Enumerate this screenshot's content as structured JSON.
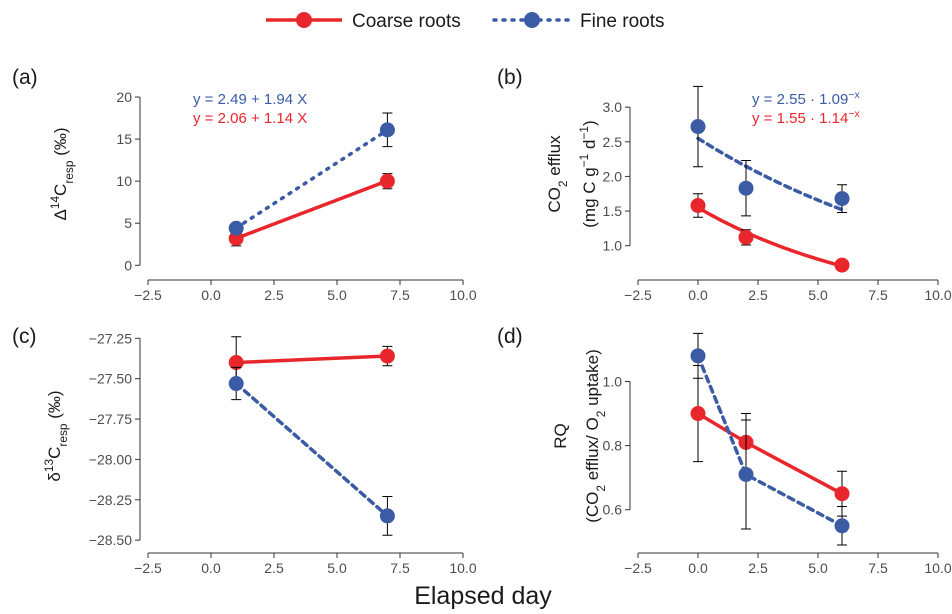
{
  "colors": {
    "coarse": "#e8262b",
    "fine": "#3b5ba5",
    "axis": "#333333",
    "text": "#1a1a1a"
  },
  "legend": {
    "coarse_label": "Coarse roots",
    "fine_label": "Fine roots"
  },
  "xlabel": "Elapsed day",
  "chart_data": [
    {
      "type": "line",
      "panel": "(a)",
      "ylabel_parts": [
        {
          "text": "Δ",
          "style": "normal"
        },
        {
          "text": "14",
          "style": "sup"
        },
        {
          "text": "C",
          "style": "normal"
        },
        {
          "text": "resp",
          "style": "sub"
        },
        {
          "text": " (‰)",
          "style": "normal"
        }
      ],
      "xlim": [
        -2.5,
        10.0
      ],
      "ylim": [
        -0.8,
        22.5
      ],
      "xticks": [
        -2.5,
        0.0,
        2.5,
        5.0,
        7.5,
        10.0
      ],
      "xtick_labels": [
        "−2.5",
        "0.0",
        "2.5",
        "5.0",
        "7.5",
        "10.0"
      ],
      "yticks": [
        0,
        5,
        10,
        15,
        20
      ],
      "ytick_labels": [
        "0",
        "5",
        "10",
        "15",
        "20"
      ],
      "series": [
        {
          "name": "Coarse roots",
          "key": "coarse",
          "style": "solid",
          "x": [
            1,
            7
          ],
          "y": [
            3.2,
            10.0
          ],
          "err": [
            0.9,
            0.9
          ],
          "fit": {
            "kind": "linear",
            "a": 2.06,
            "b": 1.14,
            "x_range": [
              1,
              7
            ]
          }
        },
        {
          "name": "Fine roots",
          "key": "fine",
          "style": "dotted",
          "x": [
            1,
            7
          ],
          "y": [
            4.4,
            16.1
          ],
          "err": [
            0.0,
            2.0
          ],
          "fit": {
            "kind": "linear",
            "a": 2.49,
            "b": 1.94,
            "x_range": [
              1,
              7
            ]
          }
        }
      ],
      "equations": [
        {
          "key": "fine",
          "parts": [
            {
              "text": "y = 2.49 + 1.94 X",
              "style": "normal"
            }
          ]
        },
        {
          "key": "coarse",
          "parts": [
            {
              "text": "y = 2.06 + 1.14 X",
              "style": "normal"
            }
          ]
        }
      ]
    },
    {
      "type": "line",
      "panel": "(b)",
      "ylabel_lines": [
        [
          {
            "text": "CO",
            "style": "normal"
          },
          {
            "text": "2",
            "style": "sub"
          },
          {
            "text": " efflux",
            "style": "normal"
          }
        ],
        [
          {
            "text": "(mg C g",
            "style": "normal"
          },
          {
            "text": "−1",
            "style": "sup"
          },
          {
            "text": " d",
            "style": "normal"
          },
          {
            "text": "−1",
            "style": "sup"
          },
          {
            "text": ")",
            "style": "normal"
          }
        ]
      ],
      "xlim": [
        -2.5,
        10.0
      ],
      "ylim": [
        0.62,
        3.45
      ],
      "xticks": [
        -2.5,
        0.0,
        2.5,
        5.0,
        7.5,
        10.0
      ],
      "xtick_labels": [
        "−2.5",
        "0.0",
        "2.5",
        "5.0",
        "7.5",
        "10.0"
      ],
      "yticks": [
        1.0,
        1.5,
        2.0,
        2.5,
        3.0
      ],
      "ytick_labels": [
        "1.0",
        "1.5",
        "2.0",
        "2.5",
        "3.0"
      ],
      "series": [
        {
          "name": "Coarse roots",
          "key": "coarse",
          "style": "solid",
          "x": [
            0,
            2,
            6
          ],
          "y": [
            1.58,
            1.12,
            0.72
          ],
          "err": [
            0.17,
            0.11,
            0.0
          ],
          "fit": {
            "kind": "exp",
            "a": 1.55,
            "b": 1.14,
            "x_range": [
              0,
              6
            ]
          }
        },
        {
          "name": "Fine roots",
          "key": "fine",
          "style": "dashed",
          "x": [
            0,
            2,
            6
          ],
          "y": [
            2.72,
            1.83,
            1.68
          ],
          "err": [
            0.58,
            0.4,
            0.2
          ],
          "fit": {
            "kind": "exp",
            "a": 2.55,
            "b": 1.09,
            "x_range": [
              0,
              6
            ]
          }
        }
      ],
      "equations": [
        {
          "key": "fine",
          "parts": [
            {
              "text": "y = 2.55 · 1.09",
              "style": "normal"
            },
            {
              "text": "−x",
              "style": "sup"
            }
          ]
        },
        {
          "key": "coarse",
          "parts": [
            {
              "text": "y = 1.55 · 1.14",
              "style": "normal"
            },
            {
              "text": "−x",
              "style": "sup"
            }
          ]
        }
      ]
    },
    {
      "type": "line",
      "panel": "(c)",
      "ylabel_parts": [
        {
          "text": "δ",
          "style": "normal"
        },
        {
          "text": "13",
          "style": "sup"
        },
        {
          "text": "C",
          "style": "normal"
        },
        {
          "text": "resp",
          "style": "sub"
        },
        {
          "text": " (‰)",
          "style": "normal"
        }
      ],
      "xlim": [
        -2.5,
        10.0
      ],
      "ylim": [
        -28.53,
        -27.18
      ],
      "xticks": [
        -2.5,
        0.0,
        2.5,
        5.0,
        7.5,
        10.0
      ],
      "xtick_labels": [
        "−2.5",
        "0.0",
        "2.5",
        "5.0",
        "7.5",
        "10.0"
      ],
      "yticks": [
        -27.25,
        -27.5,
        -27.75,
        -28.0,
        -28.25,
        -28.5
      ],
      "ytick_labels": [
        "−27.25",
        "−27.50",
        "−27.75",
        "−28.00",
        "−28.25",
        "−28.50"
      ],
      "series": [
        {
          "name": "Coarse roots",
          "key": "coarse",
          "style": "solid",
          "x": [
            1,
            7
          ],
          "y": [
            -27.4,
            -27.36
          ],
          "err": [
            0.16,
            0.06
          ]
        },
        {
          "name": "Fine roots",
          "key": "fine",
          "style": "dashed",
          "x": [
            1,
            7
          ],
          "y": [
            -27.53,
            -28.35
          ],
          "err": [
            0.1,
            0.12
          ]
        }
      ]
    },
    {
      "type": "line",
      "panel": "(d)",
      "ylabel_lines": [
        [
          {
            "text": "RQ",
            "style": "normal"
          }
        ],
        [
          {
            "text": "(CO",
            "style": "normal"
          },
          {
            "text": "2",
            "style": "sub"
          },
          {
            "text": " efflux/ O",
            "style": "normal"
          },
          {
            "text": "2",
            "style": "sub"
          },
          {
            "text": " uptake)",
            "style": "normal"
          }
        ]
      ],
      "xlim": [
        -2.5,
        10.0
      ],
      "ylim": [
        0.49,
        1.17
      ],
      "xticks": [
        -2.5,
        0.0,
        2.5,
        5.0,
        7.5,
        10.0
      ],
      "xtick_labels": [
        "−2.5",
        "0.0",
        "2.5",
        "5.0",
        "7.5",
        "10.0"
      ],
      "yticks": [
        0.6,
        0.8,
        1.0
      ],
      "ytick_labels": [
        "0.6",
        "0.8",
        "1.0"
      ],
      "series": [
        {
          "name": "Coarse roots",
          "key": "coarse",
          "style": "solid",
          "x": [
            0,
            2,
            6
          ],
          "y": [
            0.9,
            0.81,
            0.65
          ],
          "err": [
            0.15,
            0.09,
            0.07
          ]
        },
        {
          "name": "Fine roots",
          "key": "fine",
          "style": "dashed",
          "x": [
            0,
            2,
            6
          ],
          "y": [
            1.08,
            0.71,
            0.55
          ],
          "err": [
            0.07,
            0.17,
            0.06
          ]
        }
      ]
    }
  ]
}
